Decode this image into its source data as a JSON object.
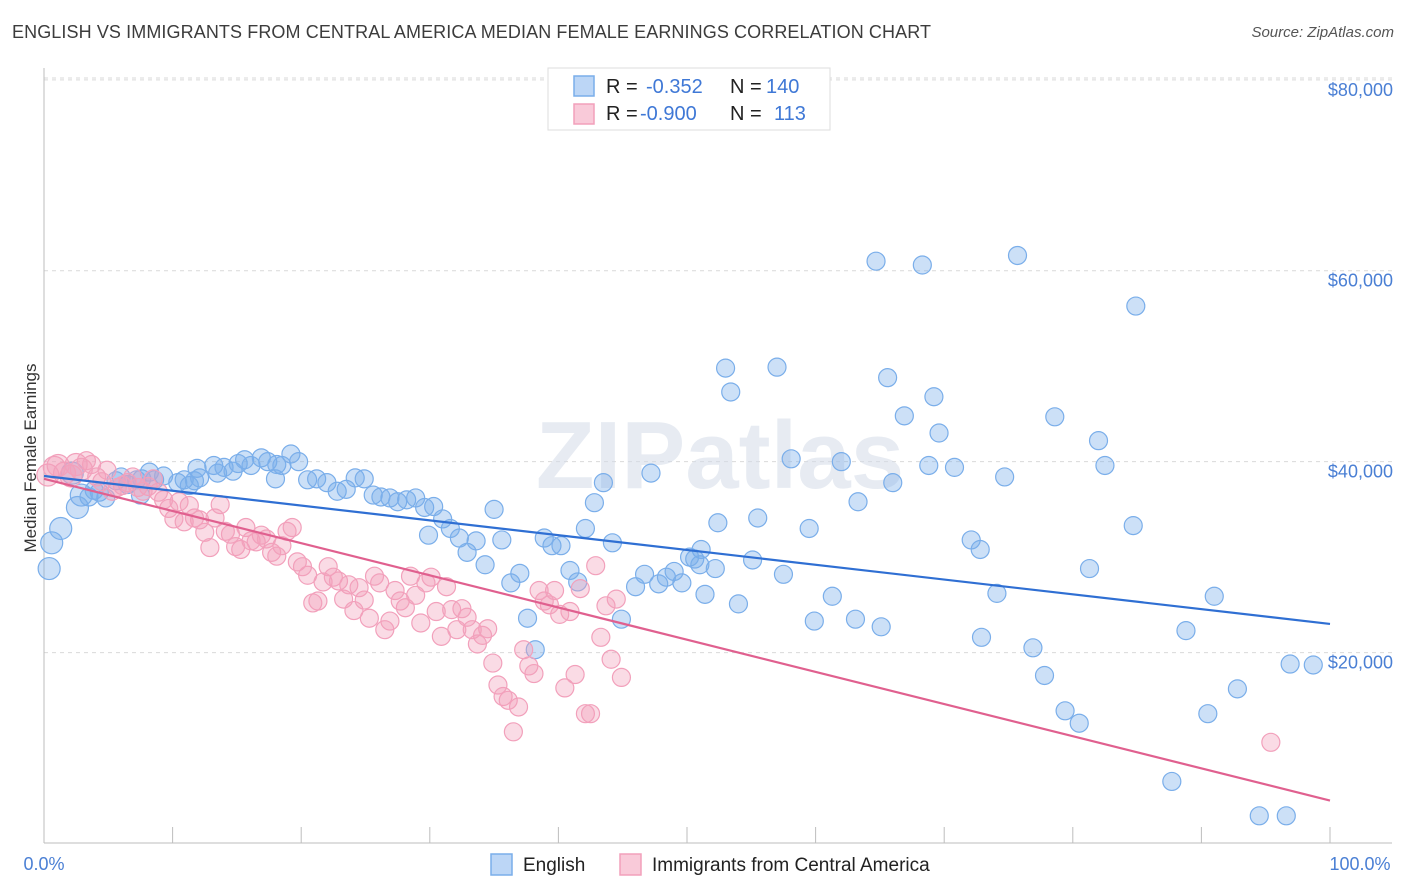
{
  "title": "ENGLISH VS IMMIGRANTS FROM CENTRAL AMERICA MEDIAN FEMALE EARNINGS CORRELATION CHART",
  "source": "Source: ZipAtlas.com",
  "watermark": "ZIPatlas",
  "colors": {
    "english": "#7aaeea",
    "english_line": "#2f6fd3",
    "immigrants": "#f2a0bb",
    "immigrants_line": "#e0608f",
    "value_text": "#3f78d6",
    "label_text": "#222222"
  },
  "legend_box": {
    "rows": [
      {
        "r_label": "R =",
        "r_value": "-0.352",
        "n_label": "N =",
        "n_value": "140"
      },
      {
        "r_label": "R =",
        "r_value": "-0.900",
        "n_label": "N =",
        "n_value": "113"
      }
    ]
  },
  "chart_data": {
    "type": "scatter",
    "xlabel": "",
    "ylabel": "Median Female Earnings",
    "xlim": [
      0,
      100
    ],
    "ylim": [
      0,
      85000
    ],
    "x_tick_labels": [
      "0.0%",
      "100.0%"
    ],
    "y_ticks": [
      {
        "value": 20000,
        "label": "$20,000"
      },
      {
        "value": 40000,
        "label": "$40,000"
      },
      {
        "value": 60000,
        "label": "$60,000"
      },
      {
        "value": 80000,
        "label": "$80,000"
      }
    ],
    "grid": "horizontal dashed",
    "legend_position": "bottom-center",
    "series": [
      {
        "name": "English",
        "trend": {
          "x": [
            0,
            100
          ],
          "y": [
            38500,
            23000
          ]
        },
        "points": [
          [
            0.4,
            28800
          ],
          [
            0.6,
            31500
          ],
          [
            1.3,
            33000
          ],
          [
            2.2,
            38800
          ],
          [
            2.6,
            35200
          ],
          [
            2.9,
            36500
          ],
          [
            3.5,
            36300
          ],
          [
            3.9,
            37000
          ],
          [
            4.3,
            36800
          ],
          [
            4.8,
            36200
          ],
          [
            5.6,
            38000
          ],
          [
            6.0,
            38400
          ],
          [
            6.5,
            37600
          ],
          [
            7.2,
            38100
          ],
          [
            7.5,
            36500
          ],
          [
            7.6,
            38200
          ],
          [
            8.2,
            38900
          ],
          [
            8.6,
            38100
          ],
          [
            9.3,
            38500
          ],
          [
            10.4,
            37800
          ],
          [
            10.9,
            38100
          ],
          [
            11.3,
            37500
          ],
          [
            11.7,
            38000
          ],
          [
            12.1,
            38300
          ],
          [
            11.9,
            39300
          ],
          [
            13.2,
            39600
          ],
          [
            13.5,
            38800
          ],
          [
            14.0,
            39400
          ],
          [
            14.7,
            39000
          ],
          [
            15.1,
            39800
          ],
          [
            15.6,
            40200
          ],
          [
            16.1,
            39600
          ],
          [
            16.9,
            40400
          ],
          [
            17.4,
            40000
          ],
          [
            18.1,
            39700
          ],
          [
            18.5,
            39600
          ],
          [
            19.2,
            40800
          ],
          [
            19.8,
            40000
          ],
          [
            20.5,
            38100
          ],
          [
            21.2,
            38200
          ],
          [
            22.0,
            37800
          ],
          [
            22.8,
            36900
          ],
          [
            23.5,
            37100
          ],
          [
            24.2,
            38300
          ],
          [
            24.9,
            38200
          ],
          [
            25.6,
            36500
          ],
          [
            26.2,
            36300
          ],
          [
            26.9,
            36200
          ],
          [
            27.5,
            35800
          ],
          [
            28.2,
            36000
          ],
          [
            28.9,
            36200
          ],
          [
            29.6,
            35200
          ],
          [
            30.3,
            35300
          ],
          [
            31.0,
            34000
          ],
          [
            31.6,
            33000
          ],
          [
            32.3,
            32000
          ],
          [
            29.9,
            32300
          ],
          [
            32.9,
            30500
          ],
          [
            33.6,
            31700
          ],
          [
            34.3,
            29200
          ],
          [
            35.0,
            35000
          ],
          [
            35.6,
            31800
          ],
          [
            36.3,
            27300
          ],
          [
            37.0,
            28300
          ],
          [
            37.6,
            23600
          ],
          [
            38.2,
            20300
          ],
          [
            38.9,
            32000
          ],
          [
            39.5,
            31200
          ],
          [
            40.2,
            31200
          ],
          [
            40.9,
            28600
          ],
          [
            41.5,
            27400
          ],
          [
            42.1,
            33000
          ],
          [
            42.8,
            35700
          ],
          [
            43.5,
            37800
          ],
          [
            44.2,
            31500
          ],
          [
            46.7,
            28200
          ],
          [
            47.8,
            27200
          ],
          [
            47.2,
            38800
          ],
          [
            48.4,
            27900
          ],
          [
            49.0,
            28500
          ],
          [
            49.6,
            27300
          ],
          [
            50.2,
            30000
          ],
          [
            51.0,
            29200
          ],
          [
            51.4,
            26100
          ],
          [
            52.2,
            28800
          ],
          [
            52.4,
            33600
          ],
          [
            51.1,
            30800
          ],
          [
            50.6,
            29800
          ],
          [
            53.0,
            49800
          ],
          [
            53.4,
            47300
          ],
          [
            54.0,
            25100
          ],
          [
            55.1,
            29700
          ],
          [
            55.5,
            34100
          ],
          [
            57.0,
            49900
          ],
          [
            57.5,
            28200
          ],
          [
            58.1,
            40300
          ],
          [
            59.5,
            33000
          ],
          [
            59.9,
            23300
          ],
          [
            61.3,
            25900
          ],
          [
            62.0,
            40000
          ],
          [
            63.1,
            23500
          ],
          [
            63.3,
            35800
          ],
          [
            64.7,
            61000
          ],
          [
            65.1,
            22700
          ],
          [
            65.6,
            48800
          ],
          [
            66.0,
            37800
          ],
          [
            66.9,
            44800
          ],
          [
            68.3,
            60600
          ],
          [
            68.8,
            39600
          ],
          [
            69.2,
            46800
          ],
          [
            69.6,
            43000
          ],
          [
            70.8,
            39400
          ],
          [
            72.1,
            31800
          ],
          [
            72.8,
            30800
          ],
          [
            72.9,
            21600
          ],
          [
            74.1,
            26200
          ],
          [
            74.7,
            38400
          ],
          [
            75.7,
            61600
          ],
          [
            76.9,
            20500
          ],
          [
            77.8,
            17600
          ],
          [
            78.6,
            44700
          ],
          [
            79.4,
            13900
          ],
          [
            80.5,
            12600
          ],
          [
            81.3,
            28800
          ],
          [
            82.0,
            42200
          ],
          [
            82.5,
            39600
          ],
          [
            84.7,
            33300
          ],
          [
            87.7,
            6500
          ],
          [
            88.8,
            22300
          ],
          [
            90.5,
            13600
          ],
          [
            91.0,
            25900
          ],
          [
            92.8,
            16200
          ],
          [
            94.5,
            2900
          ],
          [
            96.6,
            2900
          ],
          [
            96.9,
            18800
          ],
          [
            98.7,
            18700
          ],
          [
            84.9,
            56300
          ],
          [
            46.0,
            26900
          ],
          [
            44.9,
            23500
          ],
          [
            18.0,
            38200
          ]
        ]
      },
      {
        "name": "Immigrants from Central America",
        "trend": {
          "x": [
            0,
            100
          ],
          "y": [
            38200,
            4500
          ]
        },
        "points": [
          [
            0.3,
            38600
          ],
          [
            0.8,
            39400
          ],
          [
            1.1,
            39600
          ],
          [
            1.6,
            38800
          ],
          [
            2.1,
            38500
          ],
          [
            2.5,
            39700
          ],
          [
            2.9,
            39200
          ],
          [
            3.3,
            40100
          ],
          [
            3.7,
            39700
          ],
          [
            4.1,
            38400
          ],
          [
            4.5,
            37900
          ],
          [
            4.9,
            39100
          ],
          [
            5.3,
            36900
          ],
          [
            5.7,
            37300
          ],
          [
            6.1,
            37500
          ],
          [
            6.5,
            37800
          ],
          [
            6.9,
            38400
          ],
          [
            7.3,
            37300
          ],
          [
            7.7,
            36900
          ],
          [
            8.1,
            37400
          ],
          [
            8.5,
            38200
          ],
          [
            8.9,
            36800
          ],
          [
            9.3,
            36000
          ],
          [
            9.7,
            35100
          ],
          [
            10.1,
            34000
          ],
          [
            10.5,
            35800
          ],
          [
            10.9,
            33700
          ],
          [
            11.3,
            35400
          ],
          [
            11.7,
            34100
          ],
          [
            12.1,
            33900
          ],
          [
            12.5,
            32600
          ],
          [
            12.9,
            31000
          ],
          [
            13.3,
            34100
          ],
          [
            13.7,
            35500
          ],
          [
            14.1,
            32700
          ],
          [
            14.5,
            32400
          ],
          [
            14.9,
            31100
          ],
          [
            15.3,
            30800
          ],
          [
            15.7,
            33100
          ],
          [
            16.1,
            31700
          ],
          [
            16.5,
            31600
          ],
          [
            16.9,
            32300
          ],
          [
            17.3,
            31900
          ],
          [
            17.7,
            30500
          ],
          [
            18.1,
            30100
          ],
          [
            18.5,
            31200
          ],
          [
            18.9,
            32700
          ],
          [
            19.3,
            33100
          ],
          [
            19.7,
            29500
          ],
          [
            20.1,
            29000
          ],
          [
            20.5,
            28100
          ],
          [
            20.9,
            25200
          ],
          [
            21.3,
            25400
          ],
          [
            21.7,
            27400
          ],
          [
            22.1,
            29000
          ],
          [
            22.5,
            27900
          ],
          [
            22.9,
            27500
          ],
          [
            23.3,
            25600
          ],
          [
            23.7,
            27100
          ],
          [
            24.1,
            24400
          ],
          [
            24.5,
            26800
          ],
          [
            24.9,
            25500
          ],
          [
            25.3,
            23600
          ],
          [
            25.7,
            28000
          ],
          [
            26.1,
            27300
          ],
          [
            26.5,
            22400
          ],
          [
            26.9,
            23300
          ],
          [
            27.3,
            26500
          ],
          [
            27.7,
            25400
          ],
          [
            28.1,
            24700
          ],
          [
            28.5,
            28000
          ],
          [
            28.9,
            26000
          ],
          [
            29.3,
            23100
          ],
          [
            29.7,
            27300
          ],
          [
            30.1,
            27900
          ],
          [
            30.5,
            24300
          ],
          [
            30.9,
            21700
          ],
          [
            31.3,
            26900
          ],
          [
            31.7,
            24500
          ],
          [
            32.1,
            22400
          ],
          [
            32.5,
            24600
          ],
          [
            32.9,
            23700
          ],
          [
            33.3,
            22400
          ],
          [
            33.7,
            20900
          ],
          [
            34.1,
            21800
          ],
          [
            34.5,
            22500
          ],
          [
            34.9,
            18900
          ],
          [
            35.3,
            16600
          ],
          [
            35.7,
            15400
          ],
          [
            36.1,
            15000
          ],
          [
            36.5,
            11700
          ],
          [
            36.9,
            14300
          ],
          [
            37.3,
            20300
          ],
          [
            37.7,
            18600
          ],
          [
            38.1,
            17800
          ],
          [
            38.5,
            26500
          ],
          [
            38.9,
            25400
          ],
          [
            39.3,
            25000
          ],
          [
            39.7,
            26500
          ],
          [
            40.1,
            24000
          ],
          [
            40.5,
            16300
          ],
          [
            40.9,
            24300
          ],
          [
            41.3,
            17700
          ],
          [
            41.7,
            26700
          ],
          [
            42.1,
            13600
          ],
          [
            42.5,
            13600
          ],
          [
            42.9,
            29100
          ],
          [
            43.3,
            21600
          ],
          [
            43.7,
            24900
          ],
          [
            44.1,
            19300
          ],
          [
            44.5,
            25600
          ],
          [
            44.9,
            17400
          ],
          [
            95.4,
            10600
          ]
        ]
      }
    ]
  },
  "bottom_legend": [
    {
      "label": "English"
    },
    {
      "label": "Immigrants from Central America"
    }
  ]
}
